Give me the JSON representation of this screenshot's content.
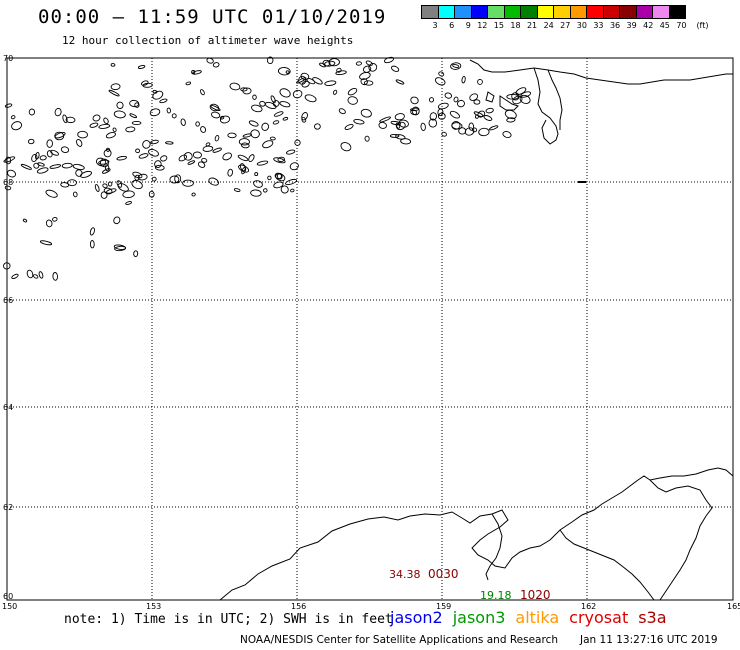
{
  "header": {
    "title": "00:00 – 11:59 UTC 01/10/2019",
    "subtitle": "12 hour collection of altimeter wave heights"
  },
  "legend": {
    "unit": "(ft)",
    "bins": [
      {
        "label": "3",
        "color": "#808080"
      },
      {
        "label": "6",
        "color": "#00ffff"
      },
      {
        "label": "9",
        "color": "#1e90ff"
      },
      {
        "label": "12",
        "color": "#0000ff"
      },
      {
        "label": "15",
        "color": "#66dd66"
      },
      {
        "label": "18",
        "color": "#00bb00"
      },
      {
        "label": "21",
        "color": "#008000"
      },
      {
        "label": "24",
        "color": "#ffff00"
      },
      {
        "label": "27",
        "color": "#ffd000"
      },
      {
        "label": "30",
        "color": "#ff9900"
      },
      {
        "label": "33",
        "color": "#ff0000"
      },
      {
        "label": "36",
        "color": "#cc0000"
      },
      {
        "label": "39",
        "color": "#880000"
      },
      {
        "label": "42",
        "color": "#aa00aa"
      },
      {
        "label": "45",
        "color": "#ee88ee"
      },
      {
        "label": "70",
        "color": "#000000"
      }
    ]
  },
  "axes": {
    "lon_ticks": [
      "150",
      "153",
      "156",
      "159",
      "162",
      "165"
    ],
    "lat_ticks": [
      "70",
      "68",
      "66",
      "64",
      "62",
      "60"
    ]
  },
  "passes": [
    {
      "swh": "34.38",
      "time": "0030",
      "color": "#880000"
    },
    {
      "swh": "19.18",
      "time": "1020",
      "color": "#008000",
      "time_color": "#880000"
    }
  ],
  "footer": {
    "note": "note: 1) Time is in UTC; 2) SWH is in feet",
    "satellites": [
      {
        "name": "jason2",
        "color": "#0000ee"
      },
      {
        "name": "jason3",
        "color": "#009900"
      },
      {
        "name": "altika",
        "color": "#ff9900"
      },
      {
        "name": "cryosat",
        "color": "#dd0000"
      },
      {
        "name": "s3a",
        "color": "#aa0000"
      }
    ],
    "credit": "NOAA/NESDIS Center for Satellite Applications and Research",
    "timestamp": "Jan 11 13:27:16 UTC 2019"
  }
}
